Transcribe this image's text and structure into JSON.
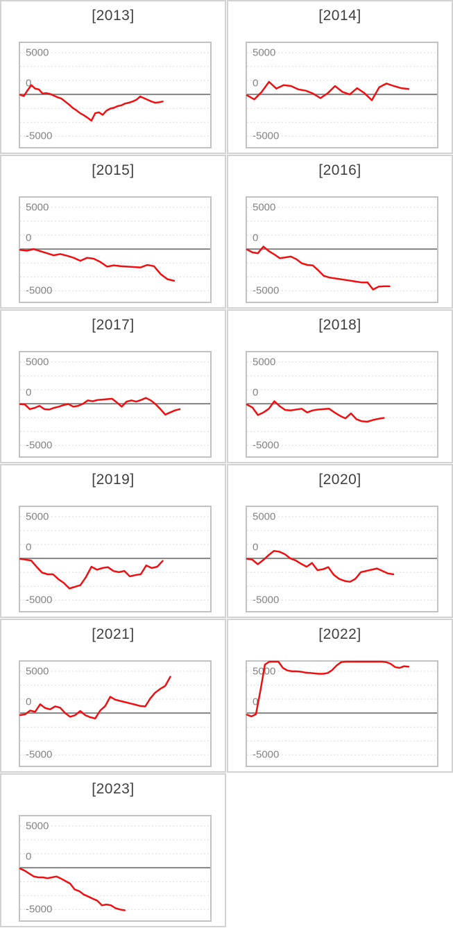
{
  "chart_config": {
    "type": "line",
    "ylim": [
      -6300,
      6150
    ],
    "y_tick_labels": [
      "5000",
      "0",
      "-5000"
    ],
    "y_tick_values": [
      5000,
      0,
      -5000
    ],
    "gridline_values": [
      5000,
      3333,
      1667,
      -1667,
      -3333,
      -5000
    ],
    "zero_line_value": 0,
    "grid_on": true,
    "legend": "none",
    "line_color": "#ef0e10",
    "zero_line_color": "#838383",
    "gridline_color": "#d9d9d9",
    "plot_border_color": "#c2c2c2",
    "cell_border_color": "#d2d2d2",
    "title_color": "#3f3f3f",
    "tick_label_color": "#848484"
  },
  "chart_data": [
    {
      "type": "line",
      "title": "[2013]",
      "x_end_fraction": 0.75,
      "values": [
        -50,
        -200,
        500,
        1100,
        700,
        600,
        100,
        150,
        50,
        -150,
        -350,
        -500,
        -850,
        -1200,
        -1600,
        -1900,
        -2250,
        -2500,
        -2800,
        -3150,
        -2250,
        -2150,
        -2450,
        -1950,
        -1700,
        -1600,
        -1400,
        -1300,
        -1100,
        -1000,
        -850,
        -650,
        -250,
        -450,
        -650,
        -850,
        -1000,
        -950,
        -850
      ]
    },
    {
      "type": "line",
      "title": "[2014]",
      "x_end_fraction": 0.85,
      "values": [
        -100,
        -600,
        300,
        1500,
        700,
        1100,
        1000,
        600,
        450,
        100,
        -450,
        150,
        1000,
        300,
        0,
        750,
        150,
        -700,
        850,
        1300,
        1000,
        750,
        650
      ]
    },
    {
      "type": "line",
      "title": "[2015]",
      "x_end_fraction": 0.81,
      "values": [
        -100,
        -200,
        0,
        -250,
        -500,
        -750,
        -600,
        -800,
        -1050,
        -1400,
        -1050,
        -1150,
        -1550,
        -2100,
        -1950,
        -2050,
        -2100,
        -2150,
        -2200,
        -1900,
        -2050,
        -3000,
        -3600,
        -3800
      ]
    },
    {
      "type": "line",
      "title": "[2016]",
      "x_end_fraction": 0.75,
      "values": [
        -50,
        -400,
        -500,
        300,
        -250,
        -650,
        -1100,
        -1000,
        -900,
        -1200,
        -1700,
        -1900,
        -1950,
        -2550,
        -3200,
        -3400,
        -3500,
        -3600,
        -3700,
        -3800,
        -3900,
        -4000,
        -4000,
        -4850,
        -4500,
        -4450,
        -4450
      ]
    },
    {
      "type": "line",
      "title": "[2017]",
      "x_end_fraction": 0.84,
      "values": [
        -50,
        -100,
        -650,
        -500,
        -250,
        -650,
        -700,
        -500,
        -350,
        -150,
        -50,
        -350,
        -250,
        0,
        400,
        300,
        450,
        500,
        550,
        600,
        150,
        -350,
        250,
        400,
        250,
        450,
        700,
        400,
        -50,
        -650,
        -1300,
        -1050,
        -800,
        -650
      ]
    },
    {
      "type": "line",
      "title": "[2018]",
      "x_end_fraction": 0.72,
      "values": [
        -100,
        -450,
        -1350,
        -1050,
        -600,
        300,
        -300,
        -750,
        -800,
        -700,
        -600,
        -1050,
        -800,
        -700,
        -650,
        -600,
        -1050,
        -1450,
        -1750,
        -1150,
        -1850,
        -2100,
        -2150,
        -1950,
        -1800,
        -1700
      ]
    },
    {
      "type": "line",
      "title": "[2019]",
      "x_end_fraction": 0.75,
      "values": [
        -50,
        -150,
        -250,
        -1000,
        -1700,
        -1900,
        -1900,
        -2500,
        -2950,
        -3600,
        -3400,
        -3200,
        -2250,
        -1000,
        -1350,
        -1150,
        -1050,
        -1500,
        -1650,
        -1500,
        -2150,
        -2000,
        -1900,
        -850,
        -1150,
        -1000,
        -300
      ]
    },
    {
      "type": "line",
      "title": "[2020]",
      "x_end_fraction": 0.77,
      "values": [
        -50,
        -150,
        -700,
        -200,
        400,
        900,
        800,
        500,
        0,
        -250,
        -650,
        -1000,
        -550,
        -1400,
        -1300,
        -1050,
        -1950,
        -2450,
        -2700,
        -2800,
        -2450,
        -1650,
        -1500,
        -1350,
        -1200,
        -1500,
        -1800,
        -1900
      ]
    },
    {
      "type": "line",
      "title": "[2021]",
      "x_end_fraction": 0.79,
      "values": [
        -250,
        -150,
        300,
        150,
        1050,
        600,
        450,
        800,
        650,
        0,
        -450,
        -250,
        250,
        -250,
        -500,
        -650,
        300,
        850,
        1950,
        1600,
        1450,
        1300,
        1150,
        1000,
        850,
        800,
        1750,
        2450,
        2900,
        3250,
        4350
      ]
    },
    {
      "type": "line",
      "title": "[2022]",
      "x_end_fraction": 0.85,
      "values": [
        -200,
        -400,
        -150,
        2700,
        5800,
        6150,
        6300,
        6150,
        5400,
        5100,
        5000,
        5000,
        4950,
        4850,
        4800,
        4750,
        4700,
        4700,
        4800,
        5150,
        5700,
        6100,
        6250,
        6300,
        6350,
        6350,
        6350,
        6350,
        6350,
        6300,
        6250,
        6100,
        5900,
        5500,
        5400,
        5600,
        5550
      ]
    },
    {
      "type": "line",
      "title": "[2023]",
      "x_end_fraction": 0.55,
      "values": [
        -100,
        -350,
        -700,
        -1050,
        -1150,
        -1150,
        -1250,
        -1150,
        -1050,
        -1300,
        -1600,
        -1900,
        -2600,
        -2800,
        -3200,
        -3450,
        -3700,
        -3950,
        -4500,
        -4400,
        -4500,
        -4850,
        -5000,
        -5100
      ]
    }
  ]
}
